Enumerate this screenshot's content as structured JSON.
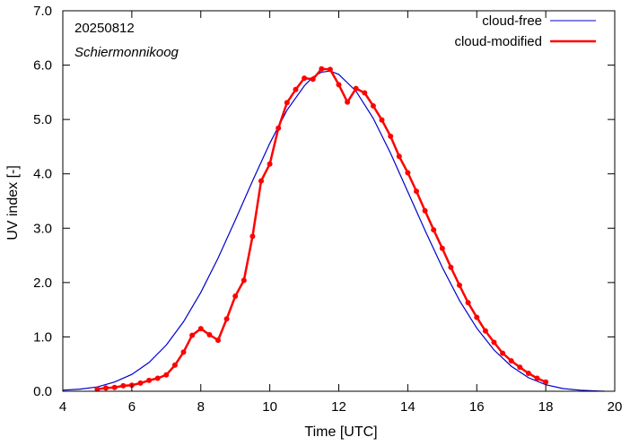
{
  "chart_data": {
    "type": "line",
    "date_label": "20250812",
    "location_label": "Schiermonnikoog",
    "xlabel": "Time  [UTC]",
    "ylabel": "UV index  [-]",
    "xlim": [
      4,
      20
    ],
    "ylim": [
      0,
      7
    ],
    "x_ticks": [
      4,
      6,
      8,
      10,
      12,
      14,
      16,
      18,
      20
    ],
    "x_tick_labels": [
      "4",
      "6",
      "8",
      "10",
      "12",
      "14",
      "16",
      "18",
      "20"
    ],
    "y_ticks": [
      0,
      1,
      2,
      3,
      4,
      5,
      6,
      7
    ],
    "y_tick_labels": [
      "0.0",
      "1.0",
      "2.0",
      "3.0",
      "4.0",
      "5.0",
      "6.0",
      "7.0"
    ],
    "grid": false,
    "legend_position": "top-right",
    "series": [
      {
        "name": "cloud-free",
        "color": "#0000cc",
        "markers": false,
        "x": [
          4.0,
          4.5,
          5.0,
          5.5,
          6.0,
          6.5,
          7.0,
          7.5,
          8.0,
          8.5,
          9.0,
          9.5,
          10.0,
          10.5,
          11.0,
          11.25,
          11.5,
          11.75,
          12.0,
          12.5,
          13.0,
          13.5,
          14.0,
          14.5,
          15.0,
          15.5,
          16.0,
          16.5,
          17.0,
          17.5,
          18.0,
          18.5,
          19.0,
          19.5,
          19.7
        ],
        "y": [
          0.02,
          0.04,
          0.08,
          0.17,
          0.31,
          0.53,
          0.85,
          1.28,
          1.82,
          2.45,
          3.15,
          3.87,
          4.56,
          5.17,
          5.62,
          5.78,
          5.87,
          5.89,
          5.83,
          5.52,
          5.02,
          4.38,
          3.67,
          2.96,
          2.28,
          1.67,
          1.16,
          0.76,
          0.46,
          0.25,
          0.12,
          0.05,
          0.02,
          0.005,
          0.0
        ]
      },
      {
        "name": "cloud-modified",
        "color": "#ff0000",
        "markers": true,
        "x": [
          5.0,
          5.25,
          5.5,
          5.75,
          6.0,
          6.25,
          6.5,
          6.75,
          7.0,
          7.25,
          7.5,
          7.75,
          8.0,
          8.25,
          8.5,
          8.75,
          9.0,
          9.25,
          9.5,
          9.75,
          10.0,
          10.25,
          10.5,
          10.75,
          11.0,
          11.25,
          11.5,
          11.75,
          12.0,
          12.25,
          12.5,
          12.75,
          13.0,
          13.25,
          13.5,
          13.75,
          14.0,
          14.25,
          14.5,
          14.75,
          15.0,
          15.25,
          15.5,
          15.75,
          16.0,
          16.25,
          16.5,
          16.75,
          17.0,
          17.25,
          17.5,
          17.75,
          18.0
        ],
        "y": [
          0.04,
          0.06,
          0.07,
          0.1,
          0.11,
          0.15,
          0.2,
          0.24,
          0.3,
          0.48,
          0.72,
          1.03,
          1.15,
          1.04,
          0.94,
          1.33,
          1.75,
          2.04,
          2.85,
          3.87,
          4.18,
          4.84,
          5.31,
          5.55,
          5.76,
          5.74,
          5.93,
          5.92,
          5.64,
          5.32,
          5.57,
          5.49,
          5.25,
          4.99,
          4.69,
          4.32,
          4.02,
          3.68,
          3.32,
          2.97,
          2.63,
          2.28,
          1.95,
          1.63,
          1.36,
          1.11,
          0.9,
          0.7,
          0.56,
          0.44,
          0.33,
          0.24,
          0.17
        ]
      }
    ]
  }
}
